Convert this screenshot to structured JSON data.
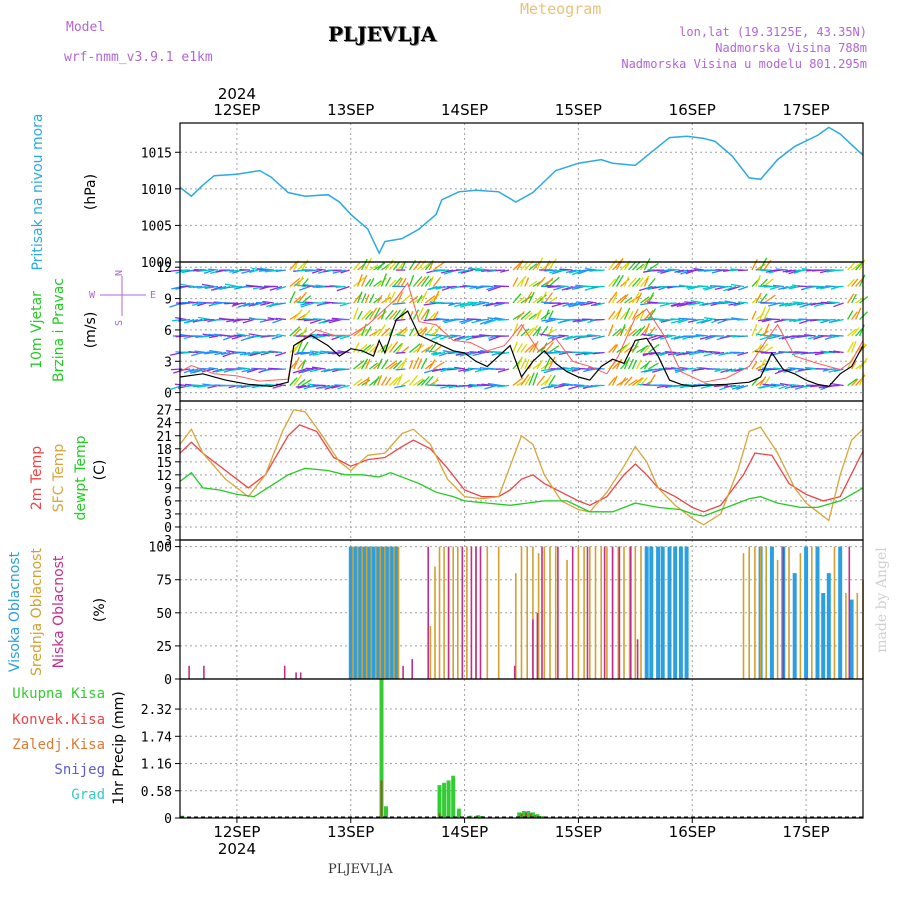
{
  "header": {
    "model_label": "Model",
    "model_value": "wrf-nmm_v3.9.1 e1km",
    "title": "PLJEVLJA",
    "meteogram": "Meteogram",
    "lonlat": "lon,lat (19.3125E, 43.35N)",
    "altitude": "Nadmorska Visina 788m",
    "model_altitude": "Nadmorska Visina u modelu 801.295m"
  },
  "footer": "PLJEVLJA",
  "watermark": "made by Angel",
  "colors": {
    "pressure": "#2aa9e6",
    "wind_speed": "#000000",
    "gust": "#ff5a5a",
    "temp2m": "#ee4444",
    "sfc_temp": "#d9a53a",
    "dewpoint": "#22cc22",
    "high_cloud": "#2aa0e0",
    "mid_cloud": "#d4a030",
    "low_cloud": "#c0308a",
    "total_precip": "#33cc33",
    "conv_precip": "#ee4444",
    "frozen_precip": "#e07a30",
    "snow": "#5a5ad8",
    "graupel": "#39c8c8",
    "grid": "#a0a0a0",
    "purple_text": "#b066d8",
    "orange_text": "#e8c27a"
  },
  "chart_data": {
    "type": "meteogram",
    "time_axis": {
      "top_year": "2024",
      "bottom_year": "2024",
      "days": [
        "12SEP",
        "13SEP",
        "14SEP",
        "15SEP",
        "16SEP",
        "17SEP"
      ],
      "range_days": [
        11.5,
        17.5
      ]
    },
    "panels": [
      {
        "id": "pressure",
        "type": "line",
        "ylabel_lines": [
          "Pritisak na nivou mora"
        ],
        "unit": "(hPa)",
        "ylim": [
          1000,
          1019
        ],
        "ticks": [
          1000,
          1005,
          1010,
          1015
        ],
        "series": [
          {
            "x": [
              11.5,
              11.6,
              11.7,
              11.8,
              12.0,
              12.2,
              12.3,
              12.45,
              12.6,
              12.8,
              12.9,
              13.0,
              13.15,
              13.25,
              13.3,
              13.45,
              13.6,
              13.75,
              13.8,
              13.95,
              14.1,
              14.3,
              14.45,
              14.6,
              14.8,
              15.0,
              15.2,
              15.3,
              15.5,
              15.6,
              15.8,
              15.95,
              16.1,
              16.2,
              16.35,
              16.5,
              16.6,
              16.75,
              16.9,
              17.1,
              17.2,
              17.3,
              17.45,
              17.5
            ],
            "values": [
              1010.2,
              1009,
              1010.5,
              1011.8,
              1012,
              1012.5,
              1011.6,
              1009.5,
              1009,
              1009.2,
              1008.2,
              1006.5,
              1004.5,
              1001.2,
              1002.8,
              1003.2,
              1004.5,
              1006.5,
              1008.5,
              1009.6,
              1009.8,
              1009.6,
              1008.2,
              1009.5,
              1012.5,
              1013.5,
              1014,
              1013.5,
              1013.2,
              1014.5,
              1017,
              1017.2,
              1016.9,
              1016.5,
              1014.5,
              1011.5,
              1011.3,
              1014,
              1015.8,
              1017.3,
              1018.4,
              1017.5,
              1015.3,
              1014.6
            ]
          }
        ]
      },
      {
        "id": "wind",
        "type": "line",
        "ylabel_lines": [
          "10m Vjetar",
          "Brzina i Pravac"
        ],
        "unit": "(m/s)",
        "compass": [
          "N",
          "S",
          "W",
          "E"
        ],
        "ylim": [
          -0.8,
          12.5
        ],
        "ticks": [
          0,
          3,
          6,
          9,
          12
        ],
        "speed_x": [
          11.5,
          11.7,
          11.9,
          12.1,
          12.3,
          12.45,
          12.5,
          12.65,
          12.8,
          12.9,
          13.0,
          13.1,
          13.2,
          13.25,
          13.3,
          13.4,
          13.5,
          13.6,
          13.7,
          13.8,
          13.9,
          14.0,
          14.1,
          14.2,
          14.3,
          14.4,
          14.5,
          14.6,
          14.7,
          14.8,
          14.9,
          15.0,
          15.1,
          15.2,
          15.3,
          15.4,
          15.5,
          15.6,
          15.7,
          15.8,
          15.9,
          16.0,
          16.1,
          16.3,
          16.5,
          16.6,
          16.7,
          16.8,
          16.9,
          17.0,
          17.1,
          17.2,
          17.3,
          17.4,
          17.5
        ],
        "speed_values": [
          1.5,
          1.8,
          1.2,
          0.8,
          0.6,
          1,
          4.5,
          5.5,
          4.5,
          3.5,
          4.2,
          4,
          3.5,
          5,
          3.8,
          7,
          7.8,
          5.5,
          5,
          4.5,
          4,
          3.8,
          3,
          2.5,
          3.5,
          4.5,
          1.5,
          3,
          4,
          2.8,
          2,
          1.5,
          1.2,
          2.5,
          3.2,
          2.8,
          5,
          5.2,
          3.5,
          1.2,
          0.8,
          0.6,
          0.7,
          0.8,
          1,
          1.5,
          3.8,
          2.2,
          1.8,
          1.2,
          0.8,
          0.6,
          1.8,
          2.5,
          4.5
        ],
        "gust_x": [
          11.5,
          11.6,
          11.8,
          12.0,
          12.2,
          12.45,
          12.5,
          12.7,
          12.85,
          13.0,
          13.15,
          13.3,
          13.4,
          13.5,
          13.6,
          13.75,
          13.9,
          14.05,
          14.2,
          14.35,
          14.5,
          14.65,
          14.8,
          14.95,
          15.1,
          15.25,
          15.35,
          15.5,
          15.6,
          15.75,
          15.9,
          16.1,
          16.3,
          16.5,
          16.65,
          16.75,
          16.9,
          17.1,
          17.3,
          17.4,
          17.5
        ],
        "gust_values": [
          2,
          2.6,
          1.8,
          1.6,
          1.1,
          1.3,
          4.5,
          6,
          5.5,
          5.5,
          6.5,
          8,
          9,
          10.5,
          6.8,
          6.5,
          5,
          4.8,
          4,
          4.5,
          6.5,
          4,
          5.2,
          3,
          2.5,
          1.8,
          3.5,
          7.2,
          8,
          5.5,
          2,
          1,
          1.4,
          2.5,
          5,
          6.5,
          3.5,
          2.8,
          2.2,
          3,
          5
        ]
      },
      {
        "id": "temperature",
        "type": "line",
        "ylabel_lines": [
          "2m Temp",
          "SFC Temp",
          "dewpt Temp"
        ],
        "unit": "(C)",
        "ylim": [
          -3,
          29
        ],
        "ticks": [
          -3,
          0,
          3,
          6,
          9,
          12,
          15,
          18,
          21,
          24,
          27
        ],
        "series": [
          {
            "name": "2m Temp",
            "x": [
              11.5,
              11.6,
              11.7,
              11.9,
              12.0,
              12.1,
              12.25,
              12.45,
              12.55,
              12.7,
              12.85,
              13.0,
              13.15,
              13.3,
              13.45,
              13.55,
              13.7,
              13.85,
              14.0,
              14.15,
              14.3,
              14.4,
              14.5,
              14.6,
              14.7,
              14.85,
              15.0,
              15.1,
              15.25,
              15.4,
              15.5,
              15.6,
              15.7,
              15.85,
              16.0,
              16.1,
              16.25,
              16.45,
              16.55,
              16.7,
              16.85,
              17.0,
              17.15,
              17.3,
              17.5
            ],
            "values": [
              17,
              19.5,
              17,
              13,
              11,
              9,
              12,
              21,
              23.5,
              22,
              16,
              14,
              15.5,
              16,
              18.5,
              20,
              18,
              13.5,
              8.5,
              7,
              7,
              8.5,
              11,
              12,
              10,
              8,
              6,
              5,
              7,
              12,
              14.5,
              12,
              9,
              7,
              4.5,
              3.5,
              5,
              12,
              17,
              16.5,
              10,
              7.5,
              6,
              7,
              17.5
            ]
          },
          {
            "name": "SFC Temp",
            "x": [
              11.5,
              11.6,
              11.7,
              11.9,
              12.0,
              12.1,
              12.25,
              12.4,
              12.5,
              12.6,
              12.75,
              12.9,
              13.0,
              13.15,
              13.3,
              13.45,
              13.55,
              13.7,
              13.85,
              14.0,
              14.15,
              14.3,
              14.4,
              14.5,
              14.6,
              14.7,
              14.85,
              15.0,
              15.1,
              15.25,
              15.4,
              15.5,
              15.6,
              15.7,
              15.85,
              16.0,
              16.1,
              16.25,
              16.4,
              16.5,
              16.6,
              16.75,
              16.9,
              17.0,
              17.1,
              17.2,
              17.3,
              17.4,
              17.5
            ],
            "values": [
              19,
              22.5,
              17,
              11,
              9,
              7,
              12,
              22,
              27,
              26.5,
              21,
              15,
              13,
              16.5,
              17,
              21.5,
              22.5,
              19,
              11,
              7,
              6.5,
              7,
              14,
              21,
              19,
              12,
              6,
              4,
              3.5,
              8,
              14,
              18.5,
              15,
              9,
              5,
              2,
              0.5,
              3,
              13,
              22,
              23,
              17,
              9,
              5.5,
              3.5,
              1.5,
              12,
              20,
              22.5
            ]
          },
          {
            "name": "dewpt Temp",
            "x": [
              11.5,
              11.6,
              11.7,
              11.85,
              12.0,
              12.15,
              12.3,
              12.45,
              12.6,
              12.8,
              12.95,
              13.1,
              13.25,
              13.35,
              13.5,
              13.6,
              13.75,
              13.9,
              14.0,
              14.2,
              14.4,
              14.55,
              14.7,
              14.9,
              15.1,
              15.3,
              15.5,
              15.7,
              15.9,
              16.0,
              16.1,
              16.25,
              16.4,
              16.5,
              16.6,
              16.75,
              16.95,
              17.1,
              17.3,
              17.5
            ],
            "values": [
              10.5,
              12.5,
              9,
              8.5,
              7.5,
              7,
              9.5,
              12,
              13.5,
              13,
              12,
              12,
              11.5,
              12.5,
              11,
              10,
              8,
              7,
              6,
              5.5,
              5,
              5.5,
              6,
              6,
              3.5,
              3.5,
              5.5,
              4.5,
              4,
              3,
              2.5,
              4,
              5.5,
              6.5,
              7,
              5.5,
              4.5,
              4.5,
              6,
              9
            ]
          }
        ]
      },
      {
        "id": "clouds",
        "type": "bar",
        "ylabel_lines": [
          "Visoka Oblacnost",
          "Srednja Oblacnost",
          "Niska Oblacnost"
        ],
        "unit": "(%)",
        "ylim": [
          0,
          105
        ],
        "ticks": [
          0,
          25,
          50,
          75,
          100
        ],
        "high_x": [
          13.0,
          13.04,
          13.08,
          13.12,
          13.16,
          13.2,
          13.24,
          13.28,
          13.32,
          13.36,
          13.4,
          15.6,
          15.64,
          15.7,
          15.74,
          15.8,
          15.85,
          15.9,
          15.95,
          16.6,
          16.7,
          16.8,
          16.9,
          17.0,
          17.1,
          17.15,
          17.2,
          17.3,
          17.4
        ],
        "high_values": [
          100,
          100,
          100,
          100,
          100,
          100,
          100,
          100,
          100,
          100,
          100,
          100,
          100,
          100,
          100,
          100,
          100,
          100,
          100,
          100,
          100,
          100,
          80,
          100,
          100,
          65,
          80,
          100,
          60
        ],
        "mid_x": [
          13.02,
          13.06,
          13.1,
          13.14,
          13.18,
          13.22,
          13.26,
          13.3,
          13.34,
          13.38,
          13.42,
          13.7,
          13.74,
          13.78,
          13.82,
          13.86,
          13.9,
          13.94,
          13.98,
          14.02,
          14.1,
          14.2,
          14.3,
          14.45,
          14.5,
          14.55,
          14.6,
          14.65,
          14.7,
          14.75,
          14.8,
          14.9,
          15.0,
          15.05,
          15.1,
          15.15,
          15.2,
          15.25,
          15.3,
          15.35,
          15.4,
          15.45,
          15.5,
          15.55,
          16.45,
          16.5,
          16.55,
          16.6,
          16.65,
          16.75,
          16.85,
          16.95,
          17.05,
          17.25,
          17.35,
          17.45,
          17.5
        ],
        "mid_values": [
          100,
          100,
          100,
          100,
          100,
          100,
          100,
          100,
          100,
          100,
          100,
          40,
          85,
          100,
          100,
          100,
          100,
          100,
          100,
          100,
          100,
          100,
          100,
          80,
          100,
          100,
          100,
          95,
          100,
          100,
          100,
          90,
          100,
          100,
          100,
          100,
          100,
          100,
          100,
          100,
          100,
          100,
          100,
          100,
          95,
          100,
          100,
          100,
          100,
          90,
          100,
          95,
          100,
          100,
          65,
          65,
          75
        ],
        "low_x": [
          11.58,
          11.71,
          12.42,
          12.52,
          12.56,
          13.46,
          13.54,
          13.68,
          13.86,
          13.98,
          14.06,
          14.1,
          14.14,
          14.44,
          14.6,
          14.64,
          14.68,
          14.82,
          14.95,
          15.08,
          15.23,
          15.3,
          15.36,
          15.46,
          15.52,
          16.8,
          17.38
        ],
        "low_values": [
          10,
          10,
          10,
          5,
          5,
          10,
          15,
          100,
          100,
          100,
          100,
          100,
          100,
          10,
          45,
          50,
          100,
          100,
          100,
          100,
          100,
          100,
          100,
          100,
          30,
          100,
          100
        ]
      },
      {
        "id": "precip",
        "type": "bar",
        "ylabel_lines": [
          "Ukupna Kisa",
          "Konvek.Kisa",
          "Zaledj.Kisa",
          "Snijeg",
          "Grad"
        ],
        "precip_label": "1hr Precip (mm)",
        "ylim": [
          0,
          2.96
        ],
        "ticks": [
          "0",
          "0.58",
          "1.16",
          "1.74",
          "2.32"
        ],
        "total_x": [
          11.52,
          13.27,
          13.31,
          13.78,
          13.82,
          13.86,
          13.9,
          13.95,
          14.05,
          14.12,
          14.15,
          14.48,
          14.52,
          14.56,
          14.6,
          14.64,
          14.68
        ],
        "total_values": [
          0.05,
          2.96,
          0.25,
          0.7,
          0.75,
          0.8,
          0.9,
          0.2,
          0.05,
          0.06,
          0.04,
          0.12,
          0.15,
          0.15,
          0.12,
          0.08,
          0.04
        ],
        "conv_x": [
          13.27,
          13.78,
          14.5,
          14.54,
          14.58,
          14.62
        ],
        "conv_values": [
          0.8,
          0.1,
          0.1,
          0.12,
          0.1,
          0.06
        ]
      }
    ]
  }
}
